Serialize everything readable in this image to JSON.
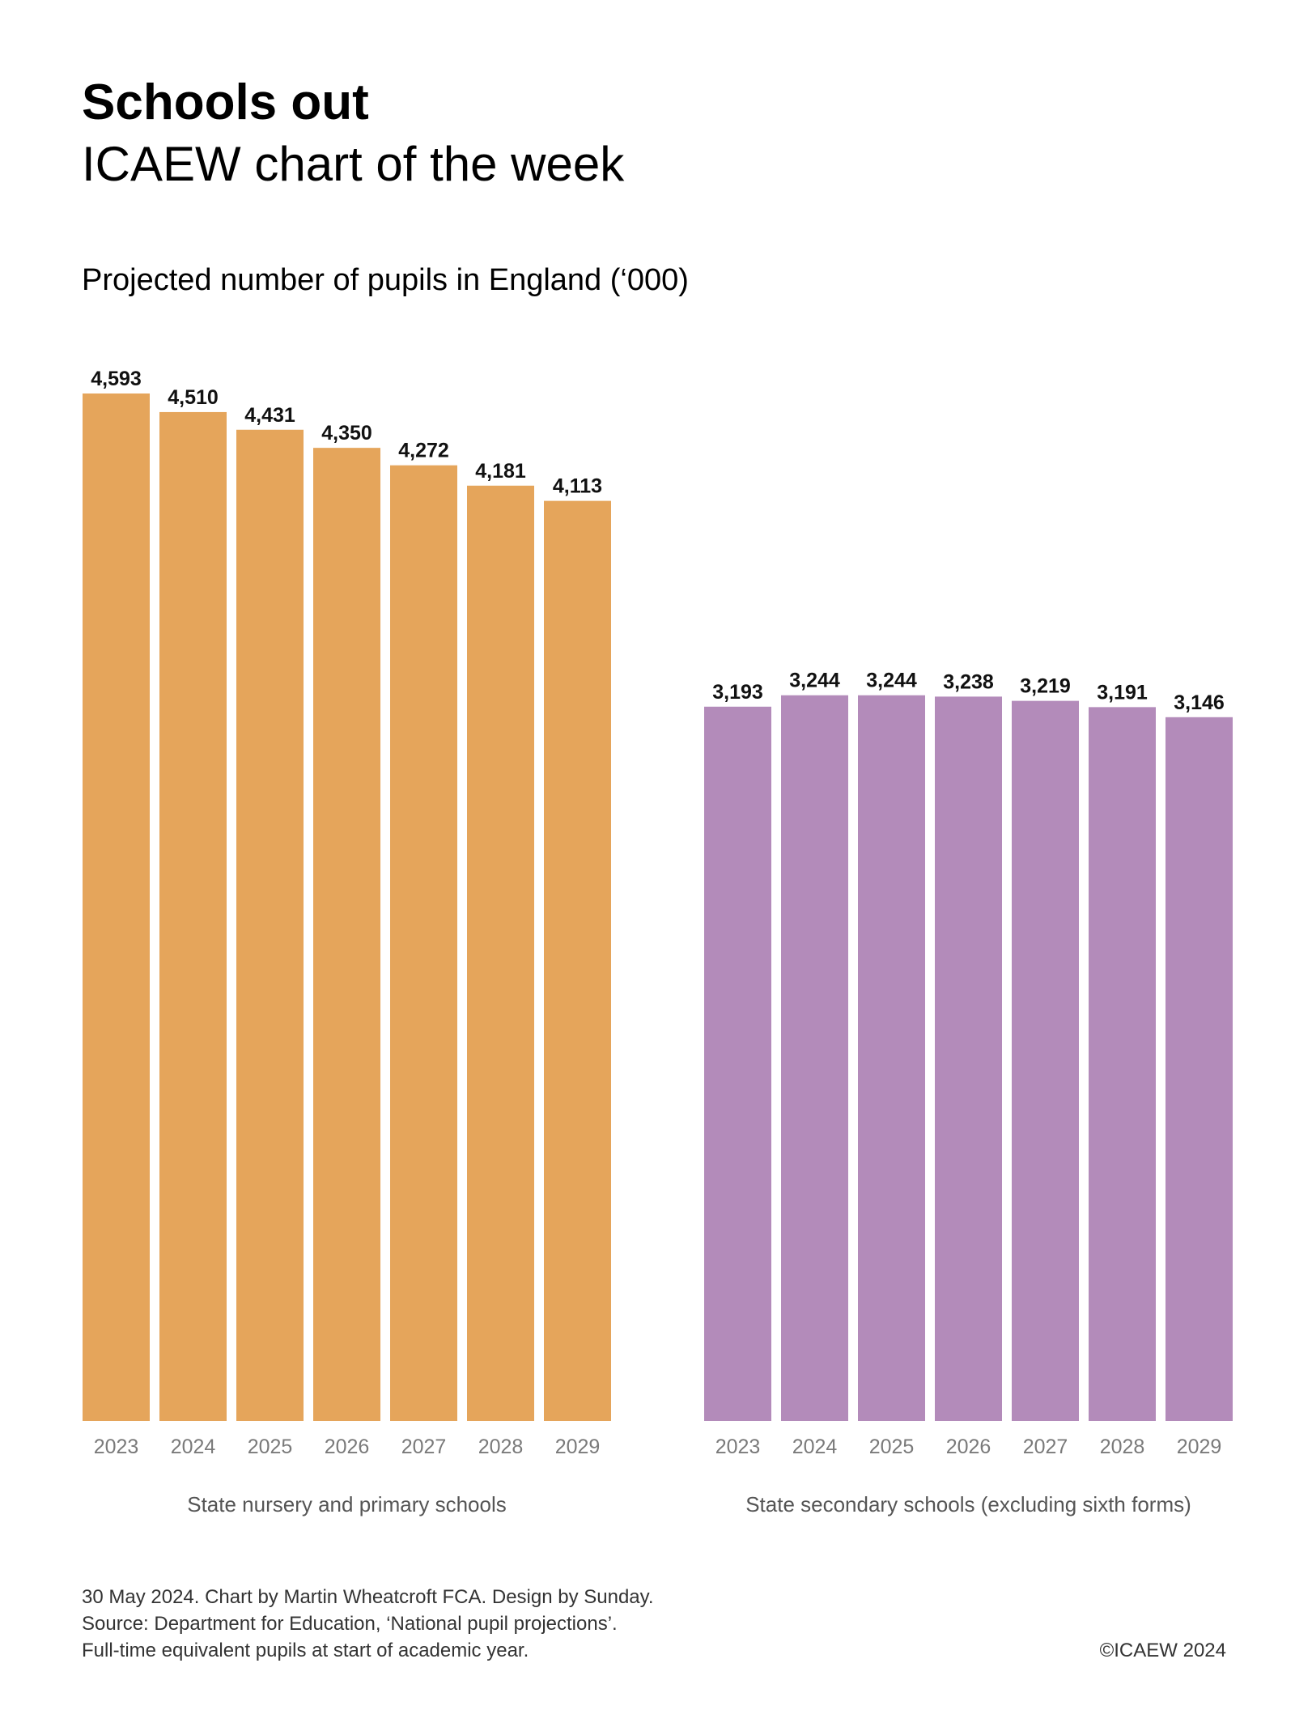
{
  "header": {
    "title": "Schools out",
    "subtitle": "ICAEW chart of the week"
  },
  "chart_heading": "Projected number of pupils in England (‘000)",
  "chart_data": {
    "type": "bar",
    "title": "Projected number of pupils in England (‘000)",
    "panels": [
      {
        "name": "State nursery and primary schools",
        "color": "#E5A55B",
        "categories": [
          "2023",
          "2024",
          "2025",
          "2026",
          "2027",
          "2028",
          "2029"
        ],
        "values": [
          4593,
          4510,
          4431,
          4350,
          4272,
          4181,
          4113
        ],
        "value_labels": [
          "4,593",
          "4,510",
          "4,431",
          "4,350",
          "4,272",
          "4,181",
          "4,113"
        ]
      },
      {
        "name": "State secondary schools (excluding sixth forms)",
        "color": "#B38BBA",
        "categories": [
          "2023",
          "2024",
          "2025",
          "2026",
          "2027",
          "2028",
          "2029"
        ],
        "values": [
          3193,
          3244,
          3244,
          3238,
          3219,
          3191,
          3146
        ],
        "value_labels": [
          "3,193",
          "3,244",
          "3,244",
          "3,238",
          "3,219",
          "3,191",
          "3,146"
        ]
      }
    ],
    "ylim": [
      0,
      4593
    ],
    "grid": false,
    "legend": "none"
  },
  "footer": {
    "line1": "30 May 2024.  Chart by Martin Wheatcroft FCA. Design by Sunday.",
    "line2": "Source: Department for Education, ‘National pupil projections’.",
    "line3": "Full-time equivalent pupils at start of academic year.",
    "copyright": "©ICAEW 2024"
  }
}
